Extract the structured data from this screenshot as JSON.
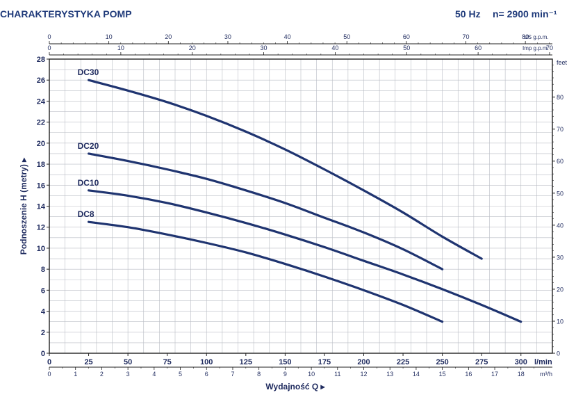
{
  "header": {
    "title": "CHARAKTERYSTYKA POMP",
    "frequency": "50 Hz",
    "speed": "n= 2900 min⁻¹"
  },
  "chart_data": {
    "type": "line",
    "ylabel": "Podnoszenie H (metry) ▸",
    "xlabel": "Wydajność Q ▸",
    "x_unit": "l/min",
    "x_unit_m3": "m³/h",
    "y_unit_right": "feet",
    "x_unit_us": "US g.p.m.",
    "x_unit_imp": "Imp g.p.m.",
    "xlim": [
      0,
      320
    ],
    "ylim": [
      0,
      28
    ],
    "grid": true,
    "x_ticks": [
      0,
      25,
      50,
      75,
      100,
      125,
      150,
      175,
      200,
      225,
      250,
      275,
      300
    ],
    "y_ticks": [
      0,
      2,
      4,
      6,
      8,
      10,
      12,
      14,
      16,
      18,
      20,
      22,
      24,
      26,
      28
    ],
    "feet_ticks": [
      0,
      10,
      20,
      30,
      40,
      50,
      60,
      70,
      80
    ],
    "m3h_ticks": [
      0,
      1,
      2,
      3,
      4,
      5,
      6,
      7,
      8,
      9,
      10,
      11,
      12,
      13,
      14,
      15,
      16,
      17,
      18
    ],
    "us_gpm_ticks": [
      0,
      10,
      20,
      30,
      40,
      50,
      60,
      70,
      80
    ],
    "imp_gpm_ticks": [
      0,
      10,
      20,
      30,
      40,
      50,
      60,
      70
    ],
    "series": [
      {
        "name": "DC30",
        "color": "#1f3470",
        "points": [
          [
            25,
            26
          ],
          [
            50,
            25
          ],
          [
            75,
            23.9
          ],
          [
            100,
            22.6
          ],
          [
            125,
            21.1
          ],
          [
            150,
            19.4
          ],
          [
            175,
            17.5
          ],
          [
            200,
            15.5
          ],
          [
            225,
            13.4
          ],
          [
            250,
            11.1
          ],
          [
            275,
            9.0
          ]
        ]
      },
      {
        "name": "DC20",
        "color": "#1f3470",
        "points": [
          [
            25,
            19
          ],
          [
            50,
            18.3
          ],
          [
            75,
            17.5
          ],
          [
            100,
            16.6
          ],
          [
            125,
            15.5
          ],
          [
            150,
            14.3
          ],
          [
            175,
            12.9
          ],
          [
            200,
            11.5
          ],
          [
            225,
            9.9
          ],
          [
            250,
            8.0
          ]
        ]
      },
      {
        "name": "DC10",
        "color": "#1f3470",
        "points": [
          [
            25,
            15.5
          ],
          [
            50,
            15.0
          ],
          [
            75,
            14.3
          ],
          [
            100,
            13.4
          ],
          [
            125,
            12.4
          ],
          [
            150,
            11.3
          ],
          [
            175,
            10.1
          ],
          [
            200,
            8.8
          ],
          [
            225,
            7.5
          ],
          [
            250,
            6.1
          ],
          [
            275,
            4.6
          ],
          [
            300,
            3.0
          ]
        ]
      },
      {
        "name": "DC8",
        "color": "#1f3470",
        "points": [
          [
            25,
            12.5
          ],
          [
            50,
            12.0
          ],
          [
            75,
            11.3
          ],
          [
            100,
            10.5
          ],
          [
            125,
            9.6
          ],
          [
            150,
            8.5
          ],
          [
            175,
            7.3
          ],
          [
            200,
            6.0
          ],
          [
            225,
            4.6
          ],
          [
            250,
            3.0
          ]
        ]
      }
    ]
  }
}
